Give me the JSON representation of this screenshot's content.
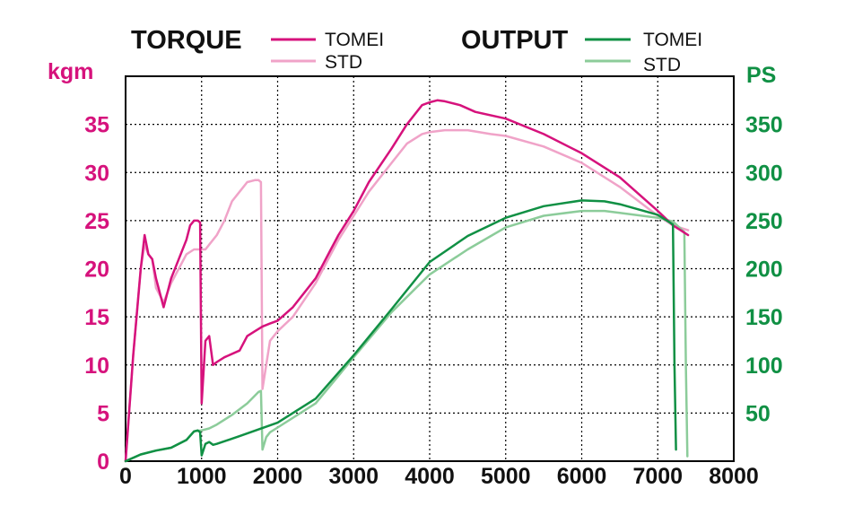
{
  "chart_data": {
    "type": "line",
    "legend": {
      "torque_title": "TORQUE",
      "output_title": "OUTPUT",
      "torque_tomei": "TOMEI",
      "torque_std": "STD",
      "output_tomei": "TOMEI",
      "output_std": "STD"
    },
    "ylabel_left": "kgm",
    "ylabel_right": "PS",
    "x_ticks": [
      "0",
      "1000",
      "2000",
      "3000",
      "4000",
      "5000",
      "6000",
      "7000",
      "8000"
    ],
    "y_left_ticks": [
      "0",
      "5",
      "10",
      "15",
      "20",
      "25",
      "30",
      "35"
    ],
    "y_right_ticks": [
      "50",
      "100",
      "150",
      "200",
      "250",
      "300",
      "350"
    ],
    "xlim": [
      0,
      8000
    ],
    "ylim_left": [
      0,
      40
    ],
    "ylim_right": [
      0,
      400
    ],
    "grid": "dotted",
    "colors": {
      "torque_tomei": "#d6127c",
      "torque_std": "#f0a3c8",
      "output_tomei": "#109044",
      "output_std": "#8ccc9a",
      "left_axis_text": "#d6127c",
      "right_axis_text": "#109044"
    },
    "series": [
      {
        "name": "TOMEI",
        "group": "TORQUE",
        "axis": "left",
        "x": [
          0,
          100,
          200,
          250,
          300,
          350,
          400,
          500,
          600,
          700,
          800,
          850,
          900,
          950,
          980,
          1000,
          1050,
          1100,
          1150,
          1200,
          1300,
          1500,
          1600,
          1700,
          1800,
          1900,
          2000,
          2200,
          2500,
          2700,
          2800,
          3000,
          3200,
          3500,
          3700,
          3900,
          4000,
          4100,
          4200,
          4400,
          4600,
          5000,
          5500,
          6000,
          6500,
          7000,
          7200,
          7300,
          7400
        ],
        "values": [
          0,
          11,
          20,
          23.5,
          21.5,
          21,
          19,
          16,
          19,
          21,
          23,
          24.5,
          25,
          25,
          24.8,
          6,
          12.5,
          13,
          10,
          10.3,
          10.8,
          11.5,
          13,
          13.5,
          14,
          14.3,
          14.6,
          16,
          19,
          22,
          23.5,
          26,
          29,
          32.5,
          35,
          37,
          37.3,
          37.5,
          37.4,
          37,
          36.3,
          35.6,
          34,
          32,
          29.5,
          26,
          24.5,
          24,
          23.5
        ]
      },
      {
        "name": "STD",
        "group": "TORQUE",
        "axis": "left",
        "x": [
          0,
          100,
          200,
          250,
          300,
          350,
          400,
          500,
          600,
          700,
          800,
          900,
          1000,
          1050,
          1100,
          1200,
          1300,
          1400,
          1500,
          1600,
          1700,
          1750,
          1780,
          1800,
          1900,
          2000,
          2200,
          2500,
          2700,
          2800,
          3000,
          3200,
          3500,
          3700,
          3900,
          4000,
          4200,
          4500,
          4800,
          5000,
          5500,
          6000,
          6500,
          7000,
          7200,
          7400
        ],
        "values": [
          0,
          11,
          20,
          22.5,
          21.5,
          21,
          18,
          16.5,
          18.5,
          20,
          21.5,
          22,
          22,
          22,
          22.5,
          23.5,
          25,
          27,
          28,
          29,
          29.2,
          29.2,
          29,
          7.5,
          12.5,
          13.5,
          15,
          18.5,
          21.5,
          23,
          25.5,
          28,
          31,
          33,
          34,
          34.2,
          34.4,
          34.4,
          34,
          33.8,
          32.7,
          31,
          28.5,
          25.5,
          24.5,
          24
        ]
      },
      {
        "name": "TOMEI",
        "group": "OUTPUT",
        "axis": "right",
        "x": [
          0,
          200,
          400,
          600,
          800,
          900,
          950,
          980,
          1000,
          1050,
          1100,
          1150,
          1200,
          1500,
          2000,
          2500,
          3000,
          3500,
          4000,
          4500,
          5000,
          5500,
          6000,
          6300,
          6500,
          7000,
          7200,
          7220,
          7240
        ],
        "values": [
          0,
          7,
          11,
          14,
          22,
          31,
          32,
          30,
          6,
          18,
          20,
          17,
          18,
          26,
          40,
          65,
          110,
          158,
          207,
          234,
          253,
          265,
          271,
          270,
          267,
          256,
          246,
          100,
          12
        ]
      },
      {
        "name": "STD",
        "group": "OUTPUT",
        "axis": "right",
        "x": [
          0,
          200,
          400,
          600,
          800,
          900,
          1000,
          1100,
          1200,
          1400,
          1600,
          1750,
          1780,
          1800,
          1850,
          1900,
          2000,
          2500,
          3000,
          3500,
          4000,
          4500,
          5000,
          5500,
          6000,
          6300,
          6500,
          7000,
          7200,
          7350,
          7370,
          7390
        ],
        "values": [
          0,
          7,
          11,
          14,
          22,
          31,
          32,
          34,
          38,
          48,
          60,
          72,
          73,
          12,
          25,
          30,
          35,
          60,
          108,
          155,
          194,
          220,
          243,
          255,
          260,
          260,
          258,
          253,
          249,
          238,
          100,
          5
        ]
      }
    ]
  }
}
